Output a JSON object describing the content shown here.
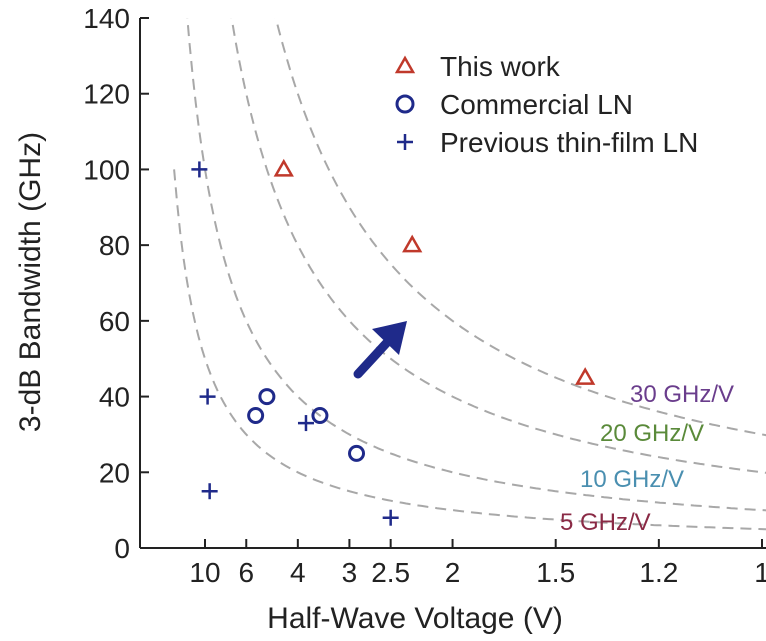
{
  "chart_data": {
    "type": "scatter",
    "xlabel": "Half-Wave Voltage (V)",
    "ylabel": "3-dB Bandwidth (GHz)",
    "xscale": "reciprocal",
    "ylim": [
      0,
      140
    ],
    "yticks": [
      0,
      20,
      40,
      60,
      80,
      100,
      120,
      140
    ],
    "xticks": [
      {
        "value": 10,
        "label": "10"
      },
      {
        "value": 6,
        "label": "6"
      },
      {
        "value": 4,
        "label": "4"
      },
      {
        "value": 3,
        "label": "3"
      },
      {
        "value": 2.5,
        "label": "2.5"
      },
      {
        "value": 2,
        "label": "2"
      },
      {
        "value": 1.5,
        "label": "1.5"
      },
      {
        "value": 1.2,
        "label": "1.2"
      },
      {
        "value": 1,
        "label": "1"
      }
    ],
    "grid": false,
    "legend_position": "top-right",
    "series": [
      {
        "name": "This work",
        "marker": "triangle",
        "color": "#c0392b",
        "points": [
          [
            4.4,
            100
          ],
          [
            2.3,
            80
          ],
          [
            1.4,
            45
          ]
        ]
      },
      {
        "name": "Commercial LN",
        "marker": "circle",
        "color": "#1f2a8a",
        "points": [
          [
            5.5,
            35
          ],
          [
            5.0,
            40
          ],
          [
            3.5,
            35
          ],
          [
            2.9,
            25
          ]
        ]
      },
      {
        "name": "Previous thin-film LN",
        "marker": "plus",
        "color": "#1f2a8a",
        "points": [
          [
            11.0,
            100
          ],
          [
            9.6,
            40
          ],
          [
            9.3,
            15
          ],
          [
            3.8,
            33
          ],
          [
            2.5,
            8
          ]
        ]
      }
    ],
    "reference_curves": [
      {
        "label": "30 GHz/V",
        "ratio": 30,
        "color": "#6a3d8c"
      },
      {
        "label": "20 GHz/V",
        "ratio": 20,
        "color": "#5a8a3a"
      },
      {
        "label": "10 GHz/V",
        "ratio": 10,
        "color": "#4a8fb0"
      },
      {
        "label": "5 GHz/V",
        "ratio": 5,
        "color": "#8a2a45"
      }
    ],
    "arrow_color": "#1f2a8a"
  }
}
